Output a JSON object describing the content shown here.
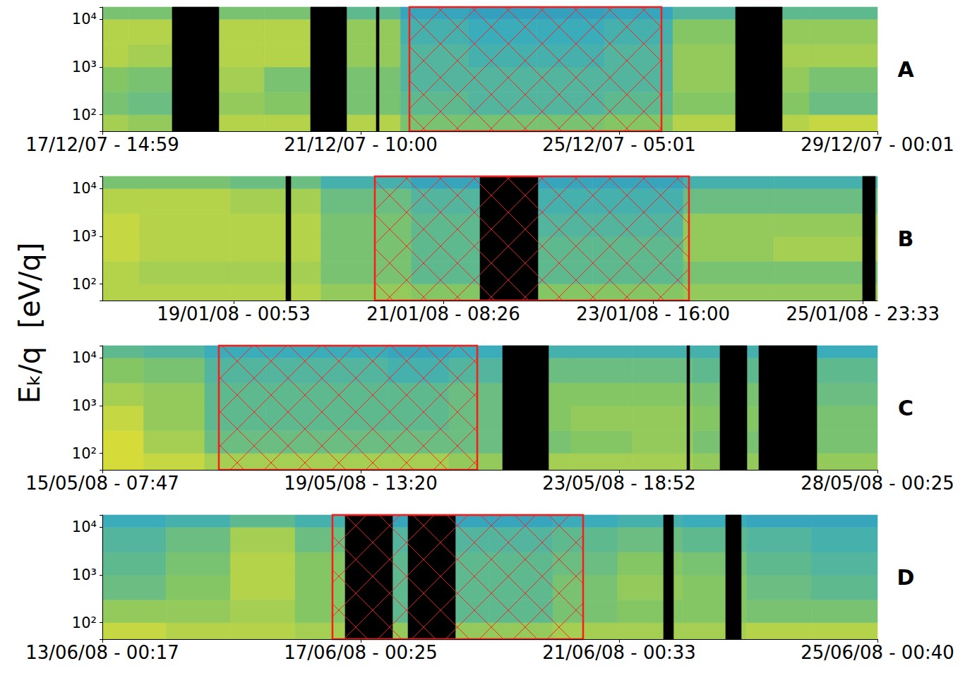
{
  "chart_data": [
    {
      "type": "heatmap",
      "title": "A",
      "log": "y",
      "xlim": [
        "2007-12-17T14:59Z",
        "2007-12-29T00:01Z"
      ],
      "xticks": [
        {
          "value": "2007-12-17T14:59Z",
          "label": "17/12/07 - 14:59"
        },
        {
          "value": "2007-12-21T10:00Z",
          "label": "21/12/07 - 10:00"
        },
        {
          "value": "2007-12-25T05:01Z",
          "label": "25/12/07 - 05:01"
        },
        {
          "value": "2007-12-29T00:01Z",
          "label": "29/12/07 - 00:01"
        }
      ],
      "ylim": [
        45,
        18000
      ],
      "yticks": [
        {
          "value": 100,
          "label": "10²"
        },
        {
          "value": 1000,
          "label": "10³"
        },
        {
          "value": 10000,
          "label": "10⁴"
        }
      ],
      "time_bins": [
        "2007-12-17T14:59Z",
        "2007-12-18T00:00Z",
        "2007-12-19T00:00Z",
        "2007-12-20T00:00Z",
        "2007-12-21T00:00Z",
        "2007-12-22T00:00Z",
        "2007-12-23T00:00Z",
        "2007-12-24T00:00Z",
        "2007-12-25T00:00Z",
        "2007-12-26T00:00Z",
        "2007-12-27T00:00Z",
        "2007-12-28T00:00Z",
        "2007-12-29T00:01Z"
      ],
      "energy_bins": [
        45,
        100,
        300,
        1000,
        3000,
        10000,
        18000
      ],
      "color_range": [
        0,
        1
      ],
      "intensity": [
        [
          0.75,
          0.6,
          0.65,
          0.8,
          0.8,
          0.6
        ],
        [
          0.7,
          0.55,
          0.6,
          0.75,
          0.8,
          0.6
        ],
        [
          0.8,
          0.7,
          0.75,
          0.8,
          0.8,
          0.6
        ],
        [
          0.8,
          0.65,
          0.6,
          0.8,
          0.8,
          0.6
        ],
        [
          0.8,
          0.6,
          0.6,
          0.7,
          0.7,
          0.5
        ],
        [
          0.6,
          0.5,
          0.45,
          0.45,
          0.4,
          0.3
        ],
        [
          0.6,
          0.45,
          0.45,
          0.4,
          0.35,
          0.25
        ],
        [
          0.6,
          0.45,
          0.45,
          0.4,
          0.35,
          0.25
        ],
        [
          0.65,
          0.5,
          0.45,
          0.45,
          0.4,
          0.3
        ],
        [
          0.8,
          0.65,
          0.7,
          0.7,
          0.65,
          0.45
        ],
        [
          0.8,
          0.65,
          0.7,
          0.75,
          0.7,
          0.5
        ],
        [
          0.85,
          0.55,
          0.6,
          0.75,
          0.7,
          0.5
        ]
      ],
      "data_gaps": {
        "color": "#000000",
        "x": [
          [
            "2007-12-18T15:36Z",
            "2007-12-19T08:01Z"
          ],
          [
            "2007-12-20T16:20Z",
            "2007-12-21T05:01Z"
          ],
          [
            "2007-12-21T15:28Z",
            "2007-12-21T16:28Z"
          ],
          [
            "2007-12-26T22:02Z",
            "2007-12-27T14:27Z"
          ]
        ]
      },
      "highlight": {
        "color": "#ff1a1a",
        "x": [
          "2007-12-22T03:09Z",
          "2007-12-25T19:56Z"
        ]
      }
    },
    {
      "type": "heatmap",
      "title": "B",
      "log": "y",
      "xlim": [
        "2008-01-17T14:06Z",
        "2008-01-26T03:26Z"
      ],
      "xticks": [
        {
          "value": "2008-01-19T00:53Z",
          "label": "19/01/08 - 00:53"
        },
        {
          "value": "2008-01-21T08:26Z",
          "label": "21/01/08 - 08:26"
        },
        {
          "value": "2008-01-23T16:00Z",
          "label": "23/01/08 - 16:00"
        },
        {
          "value": "2008-01-25T23:33Z",
          "label": "25/01/08 - 23:33"
        }
      ],
      "ylim": [
        45,
        18000
      ],
      "yticks": [
        {
          "value": 100,
          "label": "10²"
        },
        {
          "value": 1000,
          "label": "10³"
        },
        {
          "value": 10000,
          "label": "10⁴"
        }
      ],
      "time_bins": [
        "2008-01-17T14:06Z",
        "2008-01-18T00:00Z",
        "2008-01-19T00:00Z",
        "2008-01-20T00:00Z",
        "2008-01-21T00:00Z",
        "2008-01-22T00:00Z",
        "2008-01-23T00:00Z",
        "2008-01-24T00:00Z",
        "2008-01-25T00:00Z",
        "2008-01-26T03:26Z"
      ],
      "energy_bins": [
        45,
        100,
        300,
        1000,
        3000,
        10000,
        18000
      ],
      "color_range": [
        0,
        1
      ],
      "intensity": [
        [
          0.8,
          0.8,
          0.85,
          0.85,
          0.8,
          0.6
        ],
        [
          0.8,
          0.75,
          0.8,
          0.8,
          0.8,
          0.6
        ],
        [
          0.8,
          0.75,
          0.8,
          0.8,
          0.75,
          0.55
        ],
        [
          0.7,
          0.6,
          0.6,
          0.6,
          0.55,
          0.4
        ],
        [
          0.65,
          0.5,
          0.5,
          0.5,
          0.45,
          0.3
        ],
        [
          0.65,
          0.5,
          0.5,
          0.45,
          0.4,
          0.3
        ],
        [
          0.65,
          0.5,
          0.5,
          0.45,
          0.4,
          0.3
        ],
        [
          0.7,
          0.6,
          0.7,
          0.7,
          0.55,
          0.4
        ],
        [
          0.7,
          0.6,
          0.75,
          0.7,
          0.55,
          0.4
        ]
      ],
      "data_gaps": {
        "color": "#000000",
        "x": [
          [
            "2008-01-19T14:43Z",
            "2008-01-19T16:02Z"
          ],
          [
            "2008-01-21T18:09Z",
            "2008-01-22T09:29Z"
          ],
          [
            "2008-01-25T23:30Z",
            "2008-01-26T02:52Z"
          ]
        ]
      },
      "highlight": {
        "color": "#ff1a1a",
        "x": [
          "2008-01-20T14:17Z",
          "2008-01-24T01:30Z"
        ]
      }
    },
    {
      "type": "heatmap",
      "title": "C",
      "log": "y",
      "xlim": [
        "2008-05-15T07:47Z",
        "2008-05-28T00:25Z"
      ],
      "xticks": [
        {
          "value": "2008-05-15T07:47Z",
          "label": "15/05/08 - 07:47"
        },
        {
          "value": "2008-05-19T13:20Z",
          "label": "19/05/08 - 13:20"
        },
        {
          "value": "2008-05-23T18:52Z",
          "label": "23/05/08 - 18:52"
        },
        {
          "value": "2008-05-28T00:25Z",
          "label": "28/05/08 - 00:25"
        }
      ],
      "ylim": [
        45,
        18000
      ],
      "yticks": [
        {
          "value": 100,
          "label": "10²"
        },
        {
          "value": 1000,
          "label": "10³"
        },
        {
          "value": 10000,
          "label": "10⁴"
        }
      ],
      "time_bins": [
        "2008-05-15T07:47Z",
        "2008-05-16T00:00Z",
        "2008-05-17T00:00Z",
        "2008-05-18T00:00Z",
        "2008-05-19T00:00Z",
        "2008-05-20T00:00Z",
        "2008-05-21T00:00Z",
        "2008-05-22T00:00Z",
        "2008-05-23T00:00Z",
        "2008-05-24T00:00Z",
        "2008-05-25T00:00Z",
        "2008-05-26T00:00Z",
        "2008-05-27T00:00Z",
        "2008-05-28T00:25Z"
      ],
      "energy_bins": [
        45,
        100,
        300,
        1000,
        3000,
        10000,
        18000
      ],
      "color_range": [
        0,
        1
      ],
      "intensity": [
        [
          0.9,
          0.9,
          0.85,
          0.75,
          0.65,
          0.5
        ],
        [
          0.85,
          0.75,
          0.7,
          0.7,
          0.6,
          0.45
        ],
        [
          0.75,
          0.55,
          0.5,
          0.5,
          0.45,
          0.35
        ],
        [
          0.75,
          0.55,
          0.5,
          0.5,
          0.45,
          0.35
        ],
        [
          0.75,
          0.55,
          0.5,
          0.5,
          0.45,
          0.35
        ],
        [
          0.75,
          0.55,
          0.5,
          0.5,
          0.4,
          0.3
        ],
        [
          0.7,
          0.55,
          0.55,
          0.55,
          0.45,
          0.35
        ],
        [
          0.75,
          0.6,
          0.65,
          0.65,
          0.55,
          0.4
        ],
        [
          0.75,
          0.65,
          0.7,
          0.65,
          0.55,
          0.4
        ],
        [
          0.75,
          0.7,
          0.7,
          0.65,
          0.55,
          0.4
        ],
        [
          0.7,
          0.6,
          0.65,
          0.6,
          0.5,
          0.4
        ],
        [
          0.7,
          0.6,
          0.65,
          0.6,
          0.5,
          0.4
        ],
        [
          0.7,
          0.6,
          0.6,
          0.55,
          0.5,
          0.35
        ]
      ],
      "data_gaps": {
        "color": "#000000",
        "x": [
          [
            "2008-05-21T21:06Z",
            "2008-05-22T15:08Z"
          ],
          [
            "2008-05-24T21:31Z",
            "2008-05-24T22:37Z"
          ],
          [
            "2008-05-25T10:33Z",
            "2008-05-25T21:06Z"
          ],
          [
            "2008-05-26T01:49Z",
            "2008-05-27T00:34Z"
          ]
        ]
      },
      "highlight": {
        "color": "#ff1a1a",
        "x": [
          "2008-05-17T05:34Z",
          "2008-05-21T11:07Z"
        ]
      }
    },
    {
      "type": "heatmap",
      "title": "D",
      "log": "y",
      "xlim": [
        "2008-06-13T00:17Z",
        "2008-06-25T00:40Z"
      ],
      "xticks": [
        {
          "value": "2008-06-13T00:17Z",
          "label": "13/06/08 - 00:17"
        },
        {
          "value": "2008-06-17T00:25Z",
          "label": "17/06/08 - 00:25"
        },
        {
          "value": "2008-06-21T00:33Z",
          "label": "21/06/08 - 00:33"
        },
        {
          "value": "2008-06-25T00:40Z",
          "label": "25/06/08 - 00:40"
        }
      ],
      "ylim": [
        45,
        18000
      ],
      "yticks": [
        {
          "value": 100,
          "label": "10²"
        },
        {
          "value": 1000,
          "label": "10³"
        },
        {
          "value": 10000,
          "label": "10⁴"
        }
      ],
      "time_bins": [
        "2008-06-13T00:17Z",
        "2008-06-14T00:00Z",
        "2008-06-15T00:00Z",
        "2008-06-16T00:00Z",
        "2008-06-17T00:00Z",
        "2008-06-18T00:00Z",
        "2008-06-19T00:00Z",
        "2008-06-20T00:00Z",
        "2008-06-21T00:00Z",
        "2008-06-22T00:00Z",
        "2008-06-23T00:00Z",
        "2008-06-24T00:00Z",
        "2008-06-25T00:40Z"
      ],
      "energy_bins": [
        45,
        100,
        300,
        1000,
        3000,
        10000,
        18000
      ],
      "color_range": [
        0,
        1
      ],
      "intensity": [
        [
          0.85,
          0.7,
          0.55,
          0.5,
          0.45,
          0.35
        ],
        [
          0.8,
          0.7,
          0.65,
          0.6,
          0.55,
          0.4
        ],
        [
          0.8,
          0.75,
          0.8,
          0.8,
          0.75,
          0.5
        ],
        [
          0.75,
          0.65,
          0.65,
          0.65,
          0.55,
          0.4
        ],
        [
          0.7,
          0.5,
          0.5,
          0.5,
          0.45,
          0.3
        ],
        [
          0.7,
          0.5,
          0.5,
          0.5,
          0.45,
          0.3
        ],
        [
          0.7,
          0.5,
          0.5,
          0.5,
          0.45,
          0.3
        ],
        [
          0.75,
          0.6,
          0.6,
          0.55,
          0.5,
          0.35
        ],
        [
          0.75,
          0.65,
          0.7,
          0.65,
          0.55,
          0.4
        ],
        [
          0.75,
          0.65,
          0.65,
          0.6,
          0.5,
          0.35
        ],
        [
          0.8,
          0.6,
          0.55,
          0.5,
          0.45,
          0.3
        ],
        [
          0.8,
          0.6,
          0.5,
          0.45,
          0.4,
          0.3
        ]
      ],
      "data_gaps": {
        "color": "#000000",
        "x": [
          [
            "2008-06-16T18:38Z",
            "2008-06-17T12:14Z"
          ],
          [
            "2008-06-17T18:01Z",
            "2008-06-18T11:37Z"
          ],
          [
            "2008-06-21T17:05Z",
            "2008-06-21T20:46Z"
          ],
          [
            "2008-06-22T16:12Z",
            "2008-06-22T21:59Z"
          ]
        ]
      },
      "highlight": {
        "color": "#ff1a1a",
        "x": [
          "2008-06-16T13:54Z",
          "2008-06-20T11:09Z"
        ]
      }
    }
  ],
  "y_label": "Eₖ/q  [eV/q]"
}
